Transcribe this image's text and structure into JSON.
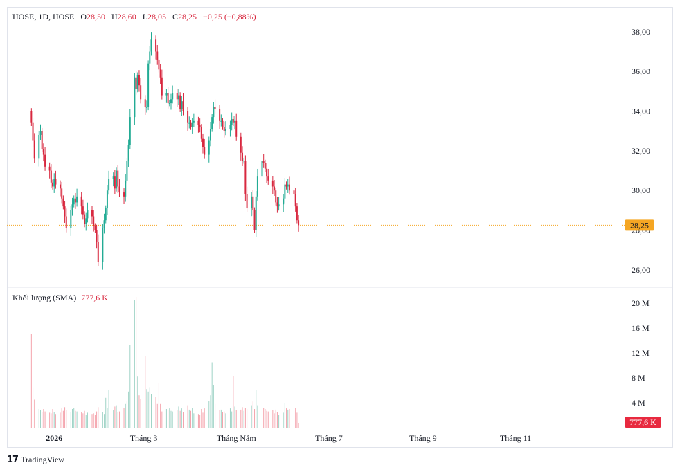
{
  "header": {
    "symbol": "HOSE, 1D, HOSE",
    "open_label": "O",
    "open": "28,50",
    "high_label": "H",
    "high": "28,60",
    "low_label": "L",
    "low": "28,05",
    "close_label": "C",
    "close": "28,25",
    "change": "−0,25 (−0,88%)"
  },
  "volume_legend": {
    "title": "Khối lượng (SMA)",
    "value": "777,6 K"
  },
  "last_price_label": "28,25",
  "last_volume_label": "777,6 K",
  "brand": {
    "name": "TradingView",
    "logo_icon": "tradingview-logo-icon"
  },
  "colors": {
    "up": "#22ab94",
    "down": "#d8283f",
    "vol_up": "#9fd3c6",
    "vol_down": "#f4a3ac",
    "last_price_bg": "#f5a623",
    "grid_text": "#131722"
  },
  "chart_data": [
    {
      "type": "candlestick",
      "title": "",
      "ylim": [
        25.3,
        38.9
      ],
      "y_ticks": [
        "26,00",
        "28,00",
        "30,00",
        "32,00",
        "34,00",
        "36,00",
        "38,00"
      ],
      "y_tick_values": [
        26,
        28,
        30,
        32,
        34,
        36,
        38
      ],
      "last_price": 28.25,
      "x_axis": {
        "tick_labels": [
          "2026",
          "Tháng 3",
          "Tháng Năm",
          "Tháng 7",
          "Tháng 9",
          "Tháng 11"
        ],
        "tick_dates": [
          "2026-01-01",
          "2026-03-01",
          "2026-05-01",
          "2026-07-01",
          "2026-09-01",
          "2026-11-01"
        ],
        "range": [
          "2025-12-10",
          "2026-12-10"
        ]
      },
      "data_start_date": "2025-12-17",
      "close": [
        33.4,
        32.5,
        31.6,
        32.8,
        33.0,
        32.1,
        31.8,
        31.2,
        31.0,
        30.4,
        30.2,
        30.6,
        30.3,
        30.1,
        29.6,
        29.2,
        28.7,
        28.1,
        29.0,
        29.3,
        29.6,
        29.4,
        29.7,
        29.2,
        28.8,
        28.3,
        28.6,
        29.0,
        28.7,
        28.2,
        28.0,
        27.4,
        26.4,
        28.1,
        28.5,
        29.1,
        30.0,
        30.6,
        30.7,
        30.1,
        31.0,
        30.2,
        29.9,
        29.7,
        30.5,
        31.5,
        32.3,
        33.7,
        35.7,
        35.1,
        35.8,
        35.3,
        34.6,
        34.2,
        34.2,
        36.4,
        37.0,
        37.6,
        37.0,
        36.6,
        36.1,
        35.7,
        34.8,
        34.9,
        34.4,
        34.4,
        34.6,
        34.9,
        34.6,
        34.8,
        34.1,
        34.5,
        34.0,
        33.4,
        33.4,
        33.2,
        33.4,
        33.5,
        33.3,
        33.2,
        32.6,
        32.2,
        31.8,
        32.5,
        33.1,
        33.7,
        34.2,
        34.1,
        33.5,
        33.5,
        33.2,
        33.0,
        33.1,
        33.3,
        33.6,
        33.4,
        33.5,
        32.7,
        31.9,
        31.5,
        31.5,
        29.8,
        29.1,
        29.7,
        29.0,
        28.0,
        29.7,
        30.7,
        31.5,
        31.4,
        31.1,
        30.7,
        30.5,
        30.2,
        30.0,
        29.4,
        29.2,
        29.3,
        29.6,
        30.3,
        30.2,
        30.3,
        30.0,
        29.8,
        29.2,
        28.5,
        28.25
      ],
      "volume_unit": "M",
      "volume_ylim": [
        0,
        22
      ],
      "volume_ticks": [
        "4 M",
        "8 M",
        "12 M",
        "16 M",
        "20 M"
      ],
      "volume_tick_values": [
        4,
        8,
        12,
        16,
        20
      ],
      "last_volume": 0.78,
      "volume": [
        15.0,
        6.5,
        4.5,
        3.0,
        2.8,
        2.5,
        3.0,
        2.6,
        2.4,
        2.3,
        3.0,
        2.5,
        2.2,
        2.4,
        3.1,
        2.7,
        3.3,
        2.8,
        2.5,
        3.0,
        3.2,
        2.7,
        2.6,
        2.5,
        2.3,
        2.7,
        2.1,
        2.4,
        2.2,
        2.3,
        2.0,
        2.6,
        3.3,
        2.5,
        2.2,
        4.8,
        3.2,
        6.0,
        2.8,
        3.4,
        3.6,
        2.5,
        2.6,
        3.2,
        3.8,
        4.2,
        5.8,
        13.3,
        20.5,
        21.0,
        8.2,
        5.2,
        4.6,
        11.5,
        6.2,
        5.8,
        6.5,
        5.4,
        4.9,
        3.8,
        7.2,
        3.8,
        2.6,
        3.0,
        2.9,
        3.1,
        2.7,
        2.6,
        2.8,
        3.4,
        2.7,
        3.1,
        2.5,
        3.6,
        2.9,
        2.7,
        3.2,
        2.3,
        2.2,
        2.1,
        3.0,
        2.4,
        3.1,
        4.3,
        5.2,
        10.5,
        6.8,
        3.8,
        2.8,
        2.9,
        2.5,
        2.6,
        2.3,
        3.1,
        2.6,
        8.3,
        3.4,
        2.8,
        2.9,
        3.3,
        2.7,
        3.2,
        3.0,
        3.6,
        4.2,
        3.0,
        6.0,
        3.6,
        4.1,
        3.2,
        3.0,
        2.7,
        2.6,
        2.8,
        2.3,
        2.9,
        2.5,
        2.1,
        2.4,
        4.0,
        3.1,
        2.9,
        3.0,
        2.6,
        3.2,
        2.4,
        0.78
      ]
    }
  ]
}
